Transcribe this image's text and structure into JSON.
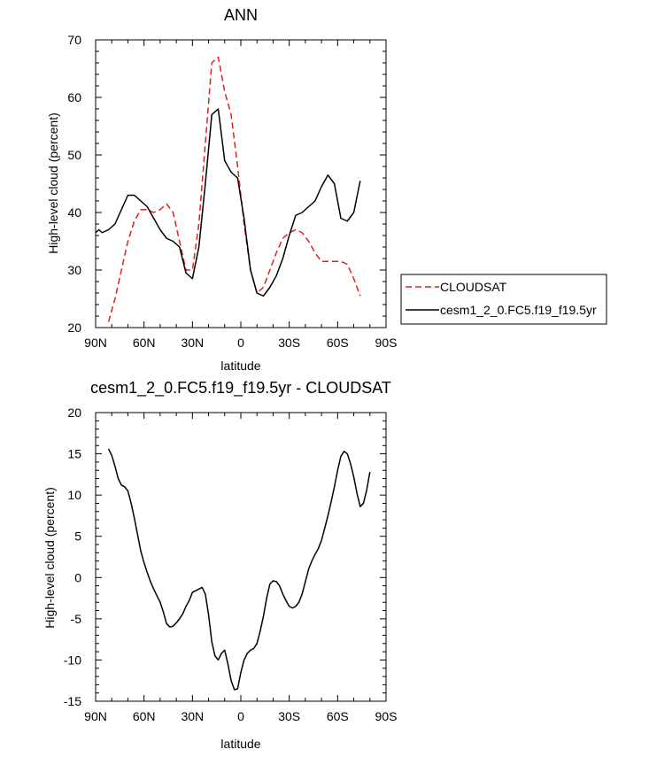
{
  "chart_data": [
    {
      "type": "line",
      "title": "ANN",
      "xlabel": "latitude",
      "ylabel": "High-level cloud (percent)",
      "xlim": [
        90,
        -90
      ],
      "ylim": [
        20,
        70
      ],
      "x_ticks": [
        90,
        60,
        30,
        0,
        -30,
        -60,
        -90
      ],
      "x_tick_labels": [
        "90N",
        "60N",
        "30N",
        "0",
        "30S",
        "60S",
        "90S"
      ],
      "y_ticks": [
        20,
        30,
        40,
        50,
        60,
        70
      ],
      "y_tick_labels": [
        "20",
        "30",
        "40",
        "50",
        "60",
        "70"
      ],
      "legend": {
        "placement": "outside-right"
      },
      "series": [
        {
          "name": "CLOUDSAT",
          "color": "#dd2222",
          "dash": true,
          "x": [
            82,
            78,
            74,
            70,
            66,
            62,
            58,
            54,
            50,
            46,
            42,
            38,
            34,
            30,
            26,
            22,
            18,
            14,
            10,
            6,
            2,
            -2,
            -6,
            -10,
            -14,
            -18,
            -22,
            -26,
            -30,
            -34,
            -38,
            -42,
            -46,
            -50,
            -54,
            -58,
            -62,
            -66,
            -70,
            -74,
            -78,
            -82
          ],
          "y": [
            21,
            25,
            30,
            35,
            38.5,
            40.5,
            40.5,
            40,
            40.5,
            41.5,
            40,
            35,
            30,
            30,
            38,
            52,
            66,
            67,
            61,
            57,
            48,
            38,
            30,
            26,
            27,
            30,
            33,
            35.5,
            36.5,
            37,
            36.5,
            35,
            33,
            31.5,
            31.5,
            31.5,
            31.5,
            31,
            28.5,
            25.5,
            null,
            null
          ]
        },
        {
          "name": "cesm1_2_0.FC5.f19_f19.5yr",
          "color": "#000000",
          "dash": false,
          "x": [
            90,
            88,
            86,
            82,
            78,
            74,
            70,
            66,
            62,
            58,
            54,
            50,
            46,
            42,
            38,
            34,
            30,
            26,
            22,
            18,
            14,
            10,
            6,
            2,
            -2,
            -6,
            -10,
            -14,
            -18,
            -22,
            -26,
            -30,
            -34,
            -38,
            -42,
            -46,
            -50,
            -54,
            -58,
            -62,
            -66,
            -70,
            -74,
            -78,
            -82,
            -86,
            -90
          ],
          "y": [
            36.5,
            37,
            36.5,
            37,
            38,
            40.5,
            43,
            43,
            42,
            41,
            39,
            37,
            35.5,
            35,
            34,
            29.5,
            28.5,
            34,
            45,
            57,
            58,
            49,
            47,
            46,
            39,
            30,
            26,
            25.5,
            27,
            29,
            32,
            36,
            39.5,
            40,
            41,
            42,
            44.5,
            46.5,
            45,
            39,
            38.5,
            40,
            45.5,
            null,
            null,
            null,
            null
          ]
        }
      ]
    },
    {
      "type": "line",
      "title": "cesm1_2_0.FC5.f19_f19.5yr - CLOUDSAT",
      "xlabel": "latitude",
      "ylabel": "High-level cloud (percent)",
      "xlim": [
        90,
        -90
      ],
      "ylim": [
        -15,
        20
      ],
      "x_ticks": [
        90,
        60,
        30,
        0,
        -30,
        -60,
        -90
      ],
      "x_tick_labels": [
        "90N",
        "60N",
        "30N",
        "0",
        "30S",
        "60S",
        "90S"
      ],
      "y_ticks": [
        -15,
        -10,
        -5,
        0,
        5,
        10,
        15,
        20
      ],
      "y_tick_labels": [
        "-15",
        "-10",
        "-5",
        "0",
        "5",
        "10",
        "15",
        "20"
      ],
      "series": [
        {
          "color": "#000000",
          "dash": false,
          "x": [
            82,
            80,
            78,
            76,
            74,
            72,
            70,
            68,
            66,
            64,
            62,
            60,
            58,
            56,
            54,
            52,
            50,
            48,
            46,
            44,
            42,
            40,
            38,
            36,
            34,
            32,
            30,
            28,
            26,
            24,
            22,
            20,
            18,
            16,
            14,
            12,
            10,
            8,
            6,
            4,
            2,
            0,
            -2,
            -4,
            -6,
            -8,
            -10,
            -12,
            -14,
            -16,
            -18,
            -20,
            -22,
            -24,
            -26,
            -28,
            -30,
            -32,
            -34,
            -36,
            -38,
            -40,
            -42,
            -44,
            -46,
            -48,
            -50,
            -52,
            -54,
            -56,
            -58,
            -60,
            -62,
            -64,
            -66,
            -68,
            -70,
            -72,
            -74,
            -76,
            -78,
            -80,
            -82
          ],
          "y": [
            15.6,
            14.8,
            13.5,
            12,
            11.2,
            11,
            10.5,
            9,
            7.2,
            5.2,
            3.2,
            1.8,
            0.6,
            -0.5,
            -1.4,
            -2.2,
            -3,
            -4.2,
            -5.6,
            -6,
            -5.9,
            -5.5,
            -5,
            -4.4,
            -3.5,
            -2.8,
            -1.8,
            -1.6,
            -1.4,
            -1.2,
            -2,
            -4.5,
            -7.8,
            -9.5,
            -10,
            -9.2,
            -8.8,
            -10.5,
            -12.5,
            -13.6,
            -13.5,
            -11.5,
            -10,
            -9.2,
            -8.8,
            -8.6,
            -8,
            -6.5,
            -4.7,
            -2.5,
            -0.8,
            -0.4,
            -0.5,
            -1,
            -2,
            -2.8,
            -3.5,
            -3.7,
            -3.5,
            -3,
            -2,
            -0.5,
            1,
            2,
            2.8,
            3.5,
            4.5,
            6,
            7.5,
            9.2,
            11,
            13,
            14.7,
            15.3,
            15,
            13.8,
            12.2,
            10.2,
            8.6,
            9,
            10.6,
            12.8,
            null
          ]
        }
      ]
    }
  ]
}
